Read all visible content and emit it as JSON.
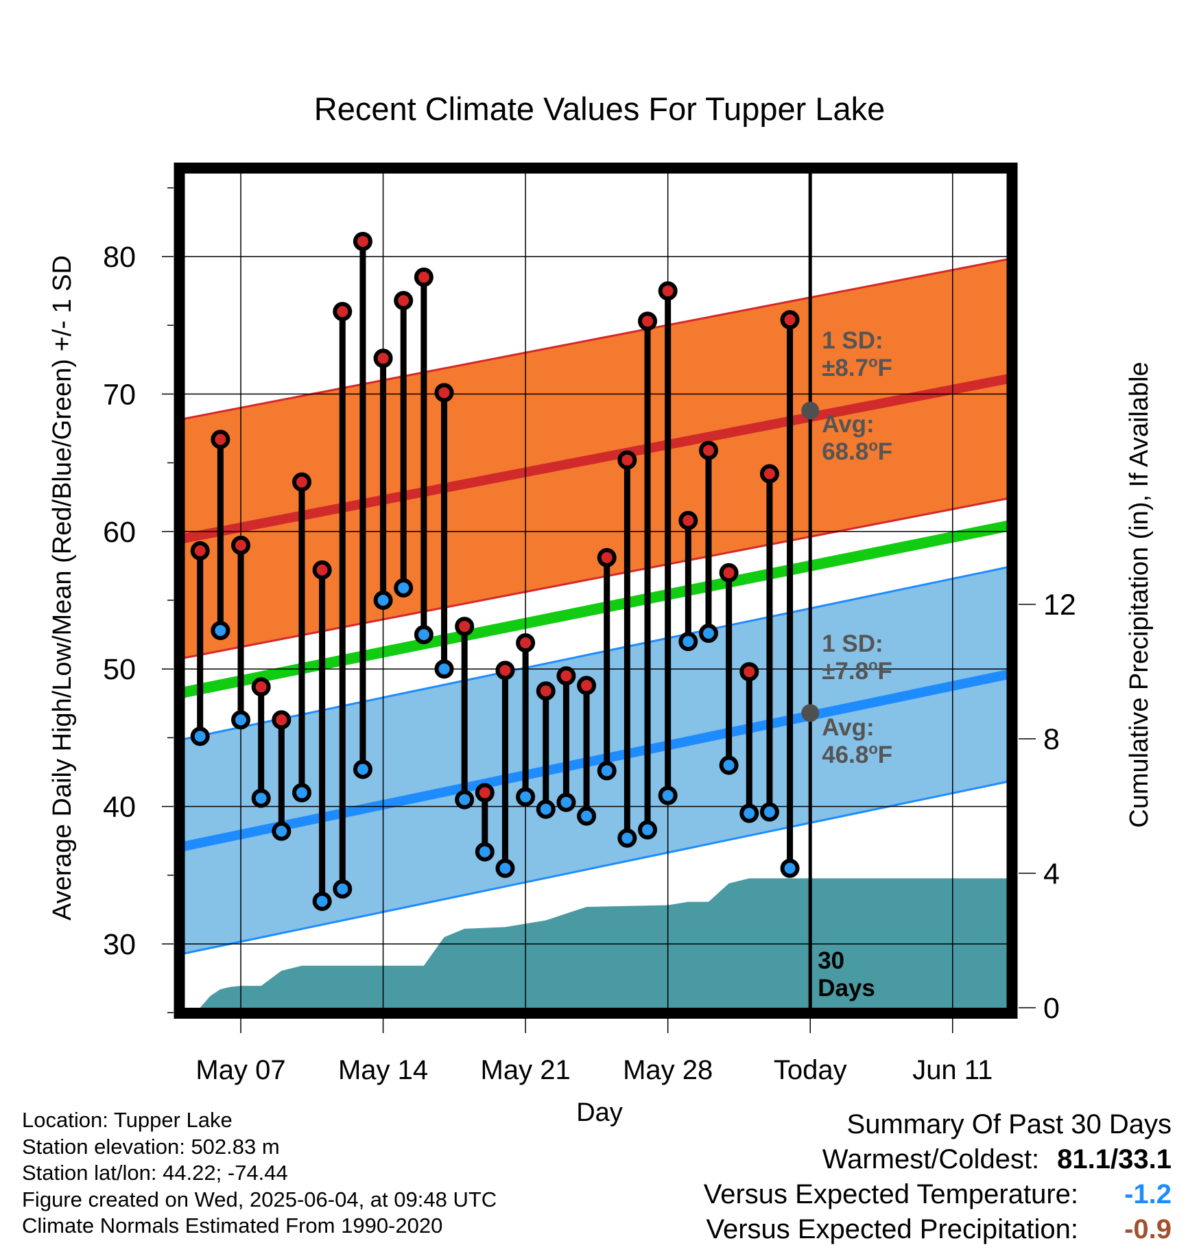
{
  "chart_data": {
    "type": "line",
    "title": "Recent Climate Values For Tupper Lake",
    "xlabel": "Day",
    "ylabel": "Average Daily High/Low/Mean (Red/Blue/Green) +/- 1 SD",
    "ylabel_right": "Cumulative Precipitation (in), If Available",
    "x_ticks": [
      {
        "day": 7,
        "label": "May 07"
      },
      {
        "day": 14,
        "label": "May 14"
      },
      {
        "day": 21,
        "label": "May 21"
      },
      {
        "day": 28,
        "label": "May 28"
      },
      {
        "day": 35,
        "label": "Today"
      },
      {
        "day": 42,
        "label": "Jun 11"
      }
    ],
    "xlim_days": [
      4.2,
      44.7
    ],
    "ylim": [
      25,
      86
    ],
    "y_ticks": [
      30,
      40,
      50,
      60,
      70,
      80
    ],
    "y2lim": [
      0,
      23.7
    ],
    "y2_ticks": [
      0,
      4,
      8,
      12
    ],
    "grid": true,
    "today_day": 35,
    "days": [
      5,
      6,
      7,
      8,
      9,
      10,
      11,
      12,
      13,
      14,
      15,
      16,
      17,
      18,
      19,
      20,
      21,
      22,
      23,
      24,
      25,
      26,
      27,
      28,
      29,
      30,
      31,
      32,
      33,
      34
    ],
    "highs": [
      58.6,
      66.7,
      59.0,
      48.7,
      46.3,
      63.6,
      57.2,
      76.0,
      81.1,
      72.6,
      76.8,
      78.5,
      70.1,
      53.1,
      41.0,
      49.9,
      51.9,
      48.4,
      49.5,
      48.8,
      58.1,
      65.2,
      75.3,
      77.5,
      60.8,
      65.9,
      57.0,
      49.8,
      64.2,
      75.4
    ],
    "lows": [
      45.1,
      52.8,
      46.3,
      40.6,
      38.2,
      41.0,
      33.1,
      34.0,
      42.7,
      55.0,
      55.9,
      52.5,
      50.0,
      40.5,
      36.7,
      35.5,
      40.7,
      39.8,
      40.3,
      39.3,
      42.6,
      37.7,
      38.3,
      40.8,
      52.0,
      52.6,
      43.0,
      39.5,
      39.6,
      35.5
    ],
    "normal_high": {
      "start": 59.5,
      "end": 71.1,
      "sd": 8.7
    },
    "normal_low": {
      "start": 37.1,
      "end": 49.6,
      "sd": 7.8
    },
    "normal_mean": {
      "start": 48.3,
      "end": 60.4
    },
    "precip_cumulative": [
      {
        "day": 5.0,
        "value": 0.0
      },
      {
        "day": 5.5,
        "value": 0.35
      },
      {
        "day": 6.0,
        "value": 0.55
      },
      {
        "day": 6.5,
        "value": 0.62
      },
      {
        "day": 7.0,
        "value": 0.65
      },
      {
        "day": 8.0,
        "value": 0.65
      },
      {
        "day": 9.0,
        "value": 1.1
      },
      {
        "day": 10.0,
        "value": 1.25
      },
      {
        "day": 16.0,
        "value": 1.25
      },
      {
        "day": 17.0,
        "value": 2.1
      },
      {
        "day": 18.0,
        "value": 2.35
      },
      {
        "day": 20.0,
        "value": 2.4
      },
      {
        "day": 21.0,
        "value": 2.5
      },
      {
        "day": 22.0,
        "value": 2.6
      },
      {
        "day": 23.0,
        "value": 2.8
      },
      {
        "day": 24.0,
        "value": 3.0
      },
      {
        "day": 28.0,
        "value": 3.05
      },
      {
        "day": 29.0,
        "value": 3.15
      },
      {
        "day": 30.0,
        "value": 3.15
      },
      {
        "day": 31.0,
        "value": 3.7
      },
      {
        "day": 32.0,
        "value": 3.85
      },
      {
        "day": 44.7,
        "value": 3.85
      }
    ],
    "annotations": {
      "high_sd": [
        "1 SD:",
        "±8.7",
        "o",
        "F"
      ],
      "high_avg": [
        "Avg:",
        "68.8",
        "o",
        "F"
      ],
      "low_sd": [
        "1 SD:",
        "±7.8",
        "o",
        "F"
      ],
      "low_avg": [
        "Avg:",
        "46.8",
        "o",
        "F"
      ],
      "days_label": [
        "30",
        "Days"
      ],
      "high_avg_value": 68.8,
      "low_avg_value": 46.8
    },
    "colors": {
      "high_band": "#f47a2f",
      "high_band_edge": "#d62828",
      "high_line": "#d02a2a",
      "low_band": "#86c1e7",
      "low_band_edge": "#1e8cff",
      "low_line": "#1e8cff",
      "mean_line": "#12cc12",
      "precip": "#4a9aa3",
      "high_marker": "#d62728",
      "low_marker": "#2b9af5",
      "annotation_text": "#555555",
      "avg_marker": "#505050"
    }
  },
  "footer": {
    "location": "Location: Tupper Lake",
    "elevation": "Station elevation: 502.83 m",
    "latlon": "Station lat/lon: 44.22; -74.44",
    "created": "Figure created on Wed, 2025-06-04, at 09:48 UTC",
    "normals": "Climate Normals Estimated From 1990-2020"
  },
  "summary": {
    "title": "Summary Of Past 30 Days",
    "warm_cold_label": "Warmest/Coldest:",
    "warm_cold_value": "81.1/33.1",
    "temp_label": "Versus Expected Temperature:",
    "temp_value": "-1.2",
    "temp_color": "#1e8cff",
    "precip_label": "Versus Expected Precipitation:",
    "precip_value": "-0.9",
    "precip_color": "#a0522d"
  }
}
